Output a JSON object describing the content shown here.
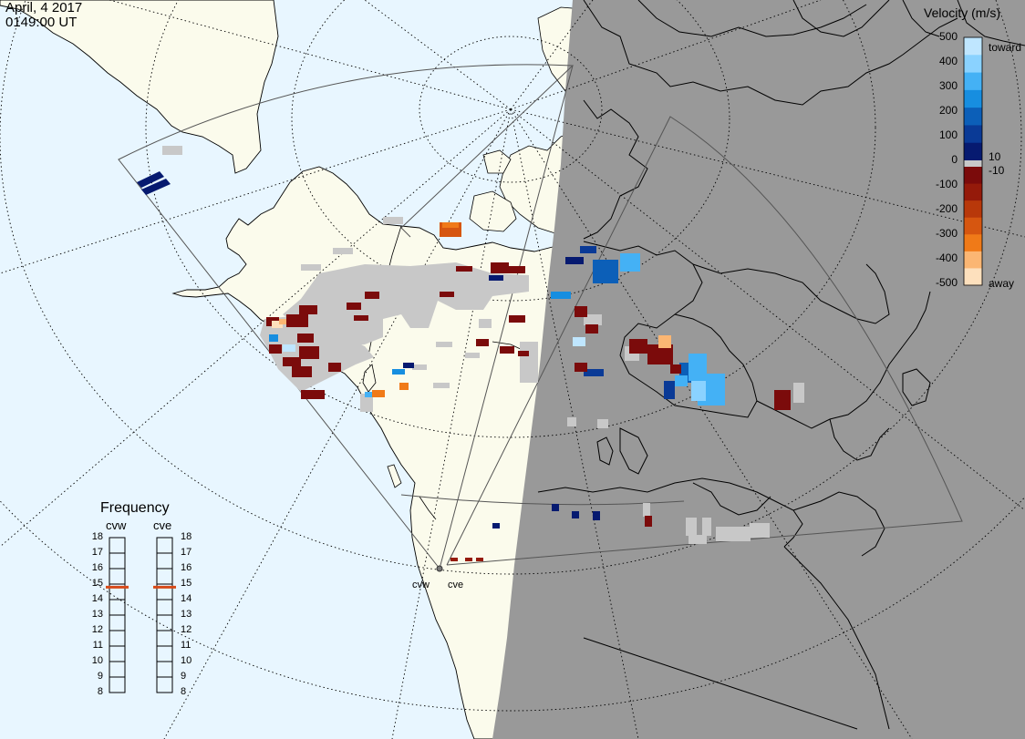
{
  "header": {
    "date": "April, 4 2017",
    "time": "0149:00 UT"
  },
  "colors": {
    "ocean": "#e8f6ff",
    "land_day": "#fbfbec",
    "night": "#999999",
    "coast": "#000000",
    "grid": "#000000",
    "ground_scatter": "#c8c8c8",
    "freq_marker": "#d74a18"
  },
  "colorbar": {
    "title": "Velocity (m/s)",
    "ticks": [
      "500",
      "400",
      "300",
      "200",
      "100",
      "10",
      "0",
      "-10",
      "-100",
      "-200",
      "-300",
      "-400",
      "-500"
    ],
    "toward_label": "toward",
    "away_label": "away",
    "stops": [
      {
        "color": "#bfe6ff"
      },
      {
        "color": "#8ad2ff"
      },
      {
        "color": "#44b1f5"
      },
      {
        "color": "#178ee0"
      },
      {
        "color": "#0c5fb8"
      },
      {
        "color": "#0a3a96"
      },
      {
        "color": "#061a70"
      },
      {
        "color": "#7b0b0b"
      },
      {
        "color": "#951a0a"
      },
      {
        "color": "#b8380a"
      },
      {
        "color": "#d65610"
      },
      {
        "color": "#f07a18"
      },
      {
        "color": "#fbb673"
      },
      {
        "color": "#fde0bd"
      }
    ]
  },
  "frequency": {
    "title": "Frequency",
    "radars": [
      {
        "label": "cvw",
        "value_mhz": 14.8
      },
      {
        "label": "cve",
        "value_mhz": 14.8
      }
    ],
    "scale": [
      "18",
      "17",
      "16",
      "15",
      "14",
      "13",
      "12",
      "11",
      "10",
      "9",
      "8"
    ]
  },
  "radars": [
    {
      "label": "cvw"
    },
    {
      "label": "cve"
    }
  ],
  "legend_icons": [
    "radar-site-icon"
  ]
}
